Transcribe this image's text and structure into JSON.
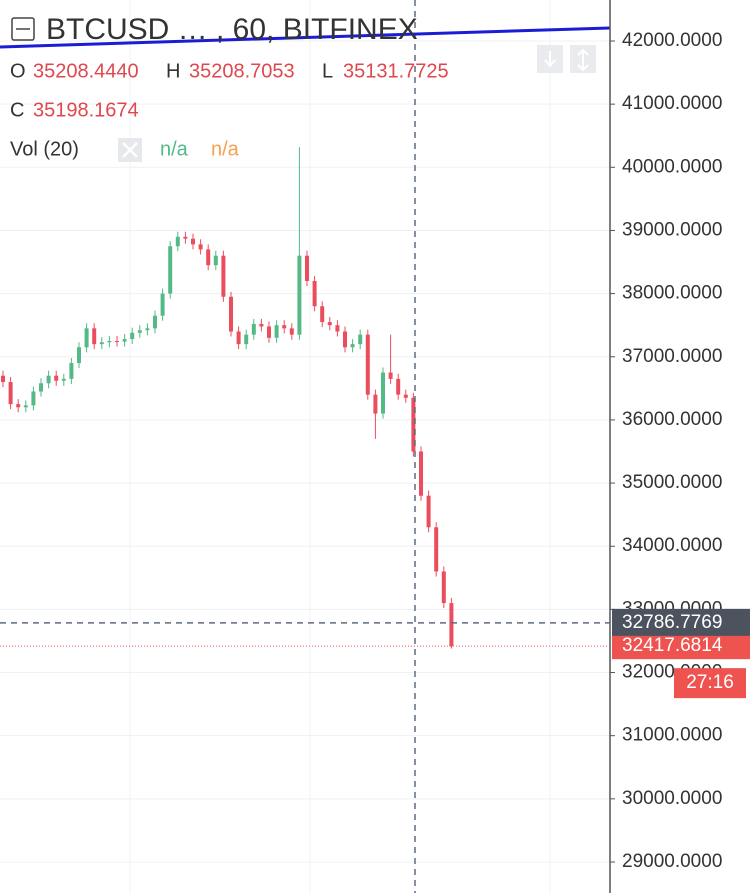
{
  "chart_data": {
    "type": "candlestick",
    "title": "BTCUSD … , 60, BITFINEX",
    "legend": {
      "o_label": "O",
      "o_value": "35208.4440",
      "h_label": "H",
      "h_value": "35208.7053",
      "l_label": "L",
      "l_value": "35131.7725",
      "c_label": "C",
      "c_value": "35198.1674",
      "volume_label": "Vol (20)",
      "volume_values": [
        "n/a",
        "n/a"
      ]
    },
    "up_color": "#53b987",
    "down_color": "#eb4d5c",
    "open": [
      36700,
      36600,
      36250,
      36200,
      36230,
      36450,
      36580,
      36700,
      36620,
      36650,
      36900,
      37150,
      37450,
      37200,
      37230,
      37250,
      37240,
      37280,
      37380,
      37420,
      37450,
      37650,
      38000,
      38750,
      38900,
      38870,
      38780,
      38700,
      38450,
      38600,
      37950,
      37400,
      37200,
      37350,
      37520,
      37480,
      37300,
      37500,
      37450,
      37350,
      38600,
      38200,
      37800,
      37550,
      37500,
      37400,
      37150,
      37200,
      37350,
      36400,
      36100,
      36750,
      36650,
      36400,
      36350,
      35500,
      34800,
      34300,
      33600,
      33100
    ],
    "high": [
      36780,
      36680,
      36330,
      36310,
      36530,
      36660,
      36780,
      36780,
      36730,
      36980,
      37230,
      37530,
      37530,
      37310,
      37330,
      37330,
      37360,
      37460,
      37500,
      37530,
      37730,
      38080,
      38830,
      38980,
      38980,
      38950,
      38860,
      38780,
      38680,
      38680,
      38030,
      37480,
      37430,
      37600,
      37600,
      37560,
      37580,
      37580,
      37530,
      40320,
      38680,
      38280,
      37880,
      37630,
      37580,
      37480,
      37280,
      37430,
      37430,
      36480,
      36830,
      37350,
      36730,
      36480,
      36430,
      35580,
      34880,
      34380,
      33680,
      33180
    ],
    "low": [
      36520,
      36170,
      36120,
      36120,
      36150,
      36370,
      36500,
      36540,
      36540,
      36570,
      36820,
      37070,
      37120,
      37120,
      37150,
      37160,
      37160,
      37200,
      37300,
      37340,
      37370,
      37570,
      37920,
      38670,
      38790,
      38700,
      38620,
      38370,
      38370,
      37870,
      37320,
      37120,
      37120,
      37270,
      37400,
      37220,
      37220,
      37370,
      37270,
      37270,
      38120,
      37720,
      37470,
      37420,
      37320,
      37070,
      37070,
      37120,
      36320,
      35700,
      36020,
      36570,
      36320,
      36270,
      35420,
      34720,
      34220,
      33520,
      33020,
      32380
    ],
    "close": [
      36600,
      36250,
      36200,
      36230,
      36450,
      36580,
      36700,
      36620,
      36650,
      36900,
      37150,
      37450,
      37200,
      37230,
      37250,
      37240,
      37280,
      37380,
      37420,
      37450,
      37650,
      38000,
      38750,
      38900,
      38870,
      38780,
      38700,
      38450,
      38600,
      37950,
      37400,
      37200,
      37350,
      37520,
      37480,
      37300,
      37500,
      37450,
      37350,
      38600,
      38200,
      37800,
      37550,
      37500,
      37400,
      37150,
      37200,
      37350,
      36400,
      36100,
      36750,
      36650,
      36400,
      36350,
      35500,
      34800,
      34300,
      33600,
      33100,
      32417.6814
    ],
    "ylim": [
      28509,
      42649
    ],
    "yticks": [
      {
        "value": 29000,
        "label": "29000.0000"
      },
      {
        "value": 30000,
        "label": "30000.0000"
      },
      {
        "value": 31000,
        "label": "31000.0000"
      },
      {
        "value": 32000,
        "label": "32000.0000"
      },
      {
        "value": 33000,
        "label": "33000.0000"
      },
      {
        "value": 34000,
        "label": "34000.0000"
      },
      {
        "value": 35000,
        "label": "35000.0000"
      },
      {
        "value": 36000,
        "label": "36000.0000"
      },
      {
        "value": 37000,
        "label": "37000.0000"
      },
      {
        "value": 38000,
        "label": "38000.0000"
      },
      {
        "value": 39000,
        "label": "39000.0000"
      },
      {
        "value": 40000,
        "label": "40000.0000"
      },
      {
        "value": 41000,
        "label": "41000.0000"
      },
      {
        "value": 42000,
        "label": "42000.0000"
      }
    ],
    "grid": true,
    "crosshair_price": 32786.7769,
    "last_price": 32417.6814,
    "countdown": "27:16"
  }
}
